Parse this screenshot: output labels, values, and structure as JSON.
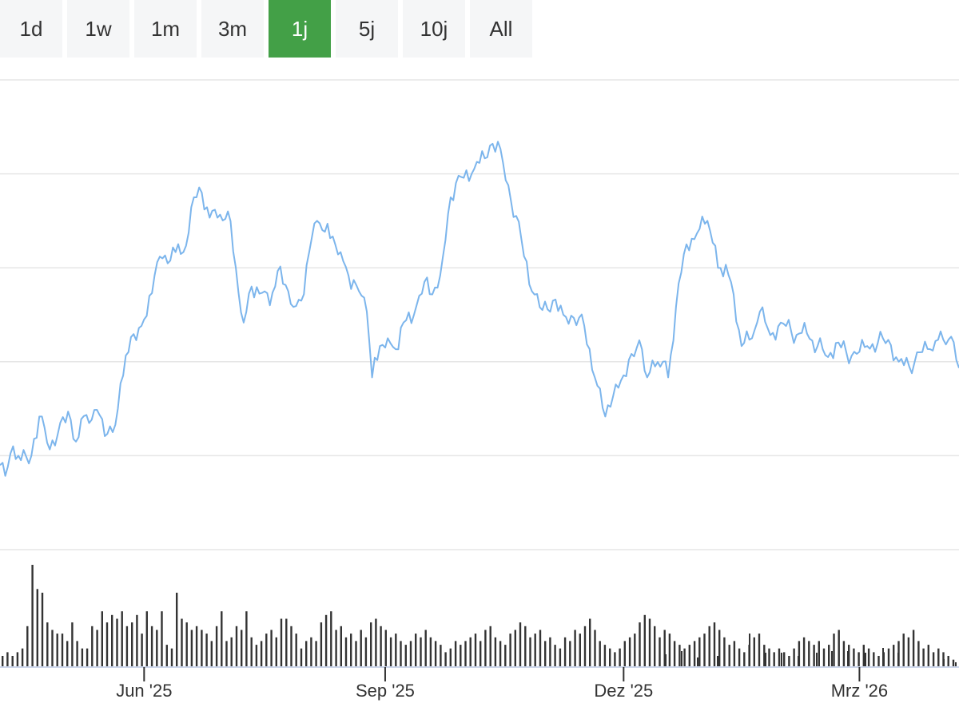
{
  "range_selector": {
    "buttons": [
      "1d",
      "1w",
      "1m",
      "3m",
      "1j",
      "5j",
      "10j",
      "All"
    ],
    "selected": "1j",
    "active_color": "#43a047"
  },
  "chart_data": {
    "type": "line",
    "grid": true,
    "line_color": "#7cb5ec",
    "volume_bar_color": "#333333",
    "y_grid_lines": 6,
    "x_range": [
      "2025-04-07",
      "2026-04-08"
    ],
    "x_ticks": [
      {
        "date": "2025-06-01",
        "label": "Jun '25"
      },
      {
        "date": "2025-09-01",
        "label": "Sep '25"
      },
      {
        "date": "2025-12-01",
        "label": "Dez '25"
      },
      {
        "date": "2026-03-01",
        "label": "Mrz '26"
      }
    ],
    "price_anchors": [
      [
        "2025-04-07",
        54
      ],
      [
        "2025-04-10",
        53
      ],
      [
        "2025-04-12",
        66
      ],
      [
        "2025-04-14",
        60
      ],
      [
        "2025-04-18",
        55
      ],
      [
        "2025-04-22",
        85
      ],
      [
        "2025-04-26",
        64
      ],
      [
        "2025-04-30",
        81
      ],
      [
        "2025-05-04",
        83
      ],
      [
        "2025-05-06",
        69
      ],
      [
        "2025-05-10",
        86
      ],
      [
        "2025-05-12",
        83
      ],
      [
        "2025-05-15",
        86
      ],
      [
        "2025-05-18",
        74
      ],
      [
        "2025-05-20",
        75
      ],
      [
        "2025-05-25",
        124
      ],
      [
        "2025-06-01",
        147
      ],
      [
        "2025-06-05",
        175
      ],
      [
        "2025-06-08",
        186
      ],
      [
        "2025-06-13",
        190
      ],
      [
        "2025-06-16",
        190
      ],
      [
        "2025-06-20",
        225
      ],
      [
        "2025-06-23",
        228
      ],
      [
        "2025-06-26",
        212
      ],
      [
        "2025-06-29",
        212
      ],
      [
        "2025-07-03",
        216
      ],
      [
        "2025-07-06",
        180
      ],
      [
        "2025-07-09",
        145
      ],
      [
        "2025-07-12",
        168
      ],
      [
        "2025-07-16",
        164
      ],
      [
        "2025-07-19",
        156
      ],
      [
        "2025-07-22",
        178
      ],
      [
        "2025-07-26",
        165
      ],
      [
        "2025-07-28",
        155
      ],
      [
        "2025-07-31",
        159
      ],
      [
        "2025-08-03",
        190
      ],
      [
        "2025-08-06",
        210
      ],
      [
        "2025-08-09",
        203
      ],
      [
        "2025-08-12",
        200
      ],
      [
        "2025-08-15",
        190
      ],
      [
        "2025-08-18",
        175
      ],
      [
        "2025-08-22",
        165
      ],
      [
        "2025-08-25",
        152
      ],
      [
        "2025-08-27",
        110
      ],
      [
        "2025-08-30",
        130
      ],
      [
        "2025-09-02",
        135
      ],
      [
        "2025-09-05",
        128
      ],
      [
        "2025-09-08",
        145
      ],
      [
        "2025-09-12",
        150
      ],
      [
        "2025-09-16",
        171
      ],
      [
        "2025-09-19",
        163
      ],
      [
        "2025-09-22",
        175
      ],
      [
        "2025-09-26",
        225
      ],
      [
        "2025-09-30",
        238
      ],
      [
        "2025-10-04",
        240
      ],
      [
        "2025-10-07",
        247
      ],
      [
        "2025-10-11",
        258
      ],
      [
        "2025-10-15",
        256
      ],
      [
        "2025-10-19",
        223
      ],
      [
        "2025-10-23",
        198
      ],
      [
        "2025-10-27",
        165
      ],
      [
        "2025-10-31",
        153
      ],
      [
        "2025-11-04",
        159
      ],
      [
        "2025-11-08",
        150
      ],
      [
        "2025-11-12",
        148
      ],
      [
        "2025-11-16",
        143
      ],
      [
        "2025-11-20",
        110
      ],
      [
        "2025-11-24",
        85
      ],
      [
        "2025-11-27",
        98
      ],
      [
        "2025-11-30",
        108
      ],
      [
        "2025-12-04",
        125
      ],
      [
        "2025-12-08",
        128
      ],
      [
        "2025-12-10",
        110
      ],
      [
        "2025-12-13",
        117
      ],
      [
        "2025-12-16",
        120
      ],
      [
        "2025-12-18",
        110
      ],
      [
        "2025-12-22",
        170
      ],
      [
        "2025-12-25",
        195
      ],
      [
        "2025-12-29",
        202
      ],
      [
        "2026-01-02",
        210
      ],
      [
        "2026-01-04",
        196
      ],
      [
        "2026-01-06",
        180
      ],
      [
        "2026-01-09",
        182
      ],
      [
        "2026-01-12",
        163
      ],
      [
        "2026-01-15",
        130
      ],
      [
        "2026-01-19",
        135
      ],
      [
        "2026-01-22",
        152
      ],
      [
        "2026-01-26",
        137
      ],
      [
        "2026-01-30",
        145
      ],
      [
        "2026-02-03",
        139
      ],
      [
        "2026-02-06",
        138
      ],
      [
        "2026-02-09",
        138
      ],
      [
        "2026-02-13",
        130
      ],
      [
        "2026-02-17",
        123
      ],
      [
        "2026-02-20",
        132
      ],
      [
        "2026-02-24",
        126
      ],
      [
        "2026-02-28",
        125
      ],
      [
        "2026-03-04",
        130
      ],
      [
        "2026-03-08",
        132
      ],
      [
        "2026-03-12",
        134
      ],
      [
        "2026-03-16",
        120
      ],
      [
        "2026-03-20",
        117
      ],
      [
        "2026-03-24",
        126
      ],
      [
        "2026-03-28",
        128
      ],
      [
        "2026-03-31",
        134
      ],
      [
        "2026-04-03",
        131
      ],
      [
        "2026-04-05",
        136
      ],
      [
        "2026-04-08",
        116
      ]
    ],
    "volume_bars": [
      6,
      8,
      6,
      8,
      10,
      22,
      55,
      42,
      40,
      24,
      20,
      18,
      18,
      14,
      24,
      14,
      10,
      10,
      22,
      20,
      30,
      24,
      28,
      26,
      30,
      22,
      24,
      28,
      18,
      30,
      22,
      20,
      30,
      12,
      10,
      40,
      26,
      24,
      20,
      22,
      20,
      18,
      14,
      22,
      30,
      14,
      16,
      22,
      20,
      30,
      16,
      12,
      14,
      18,
      20,
      16,
      26,
      26,
      22,
      18,
      10,
      14,
      16,
      14,
      24,
      28,
      30,
      20,
      22,
      16,
      18,
      14,
      20,
      16,
      24,
      26,
      22,
      20,
      16,
      18,
      14,
      12,
      14,
      18,
      16,
      20,
      16,
      14,
      12,
      8,
      10,
      14,
      12,
      14,
      16,
      18,
      14,
      20,
      22,
      16,
      14,
      12,
      18,
      20,
      24,
      22,
      16,
      18,
      20,
      14,
      16,
      12,
      10,
      16,
      14,
      20,
      18,
      22,
      26,
      20,
      14,
      12,
      10,
      8,
      10,
      14,
      16,
      18,
      24,
      28,
      26,
      22,
      16,
      20,
      18,
      14,
      12,
      10,
      12,
      14,
      16,
      18,
      22,
      24,
      20,
      16,
      12,
      14,
      10,
      8,
      12,
      16,
      18,
      12,
      10,
      8,
      10,
      8,
      6,
      10,
      14,
      16,
      14,
      12,
      14,
      10,
      12,
      18,
      20,
      14,
      12,
      10,
      8,
      12,
      10,
      8,
      6,
      8,
      10,
      12,
      14,
      18,
      16,
      20,
      14,
      10,
      12,
      8,
      10,
      8,
      6,
      4
    ]
  }
}
